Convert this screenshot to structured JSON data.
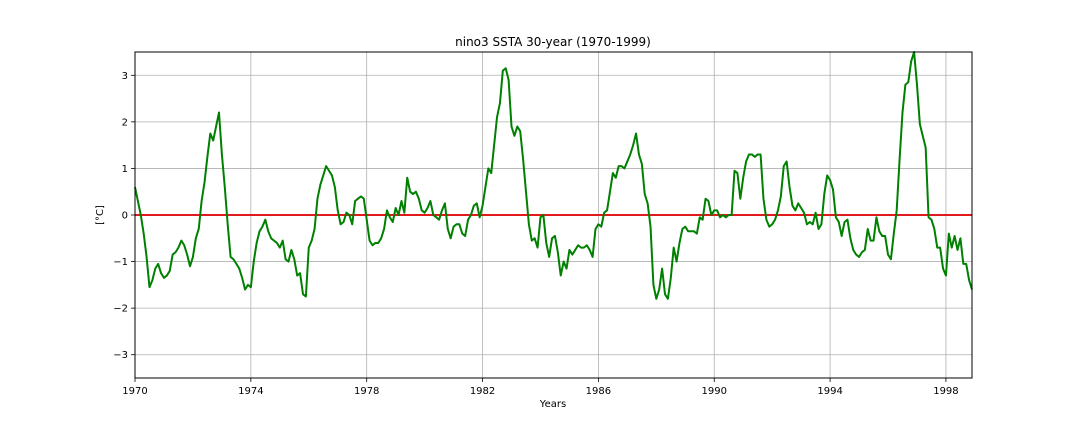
{
  "chart_data": {
    "type": "line",
    "title": "nino3 SSTA 30-year (1970-1999)",
    "xlabel": "Years",
    "ylabel": "[°C]",
    "xlim": [
      1970,
      1998.9
    ],
    "ylim": [
      -3.5,
      3.5
    ],
    "xticks": [
      1970,
      1974,
      1978,
      1982,
      1986,
      1990,
      1994,
      1998
    ],
    "yticks": [
      -3,
      -2,
      -1,
      0,
      1,
      2,
      3
    ],
    "grid": true,
    "reference_line": {
      "y": 0,
      "color": "#e31a1c"
    },
    "series": [
      {
        "color": "#008000",
        "points": [
          [
            1970.0,
            0.6
          ],
          [
            1970.1,
            0.3
          ],
          [
            1970.2,
            0.0
          ],
          [
            1970.3,
            -0.4
          ],
          [
            1970.4,
            -0.9
          ],
          [
            1970.5,
            -1.55
          ],
          [
            1970.6,
            -1.4
          ],
          [
            1970.7,
            -1.15
          ],
          [
            1970.8,
            -1.05
          ],
          [
            1970.9,
            -1.25
          ],
          [
            1971.0,
            -1.35
          ],
          [
            1971.1,
            -1.3
          ],
          [
            1971.2,
            -1.2
          ],
          [
            1971.3,
            -0.85
          ],
          [
            1971.4,
            -0.8
          ],
          [
            1971.5,
            -0.7
          ],
          [
            1971.6,
            -0.55
          ],
          [
            1971.7,
            -0.65
          ],
          [
            1971.8,
            -0.85
          ],
          [
            1971.9,
            -1.1
          ],
          [
            1972.0,
            -0.9
          ],
          [
            1972.1,
            -0.5
          ],
          [
            1972.2,
            -0.3
          ],
          [
            1972.3,
            0.3
          ],
          [
            1972.4,
            0.7
          ],
          [
            1972.5,
            1.25
          ],
          [
            1972.6,
            1.75
          ],
          [
            1972.7,
            1.6
          ],
          [
            1972.8,
            1.9
          ],
          [
            1972.9,
            2.2
          ],
          [
            1973.0,
            1.3
          ],
          [
            1973.1,
            0.6
          ],
          [
            1973.2,
            -0.2
          ],
          [
            1973.3,
            -0.9
          ],
          [
            1973.4,
            -0.95
          ],
          [
            1973.5,
            -1.05
          ],
          [
            1973.6,
            -1.15
          ],
          [
            1973.7,
            -1.35
          ],
          [
            1973.8,
            -1.6
          ],
          [
            1973.9,
            -1.5
          ],
          [
            1974.0,
            -1.55
          ],
          [
            1974.1,
            -1.0
          ],
          [
            1974.2,
            -0.6
          ],
          [
            1974.3,
            -0.35
          ],
          [
            1974.4,
            -0.25
          ],
          [
            1974.5,
            -0.1
          ],
          [
            1974.6,
            -0.35
          ],
          [
            1974.7,
            -0.5
          ],
          [
            1974.8,
            -0.55
          ],
          [
            1974.9,
            -0.6
          ],
          [
            1975.0,
            -0.7
          ],
          [
            1975.1,
            -0.55
          ],
          [
            1975.2,
            -0.95
          ],
          [
            1975.3,
            -1.0
          ],
          [
            1975.4,
            -0.75
          ],
          [
            1975.5,
            -0.95
          ],
          [
            1975.6,
            -1.3
          ],
          [
            1975.7,
            -1.25
          ],
          [
            1975.8,
            -1.7
          ],
          [
            1975.9,
            -1.75
          ],
          [
            1976.0,
            -0.7
          ],
          [
            1976.1,
            -0.55
          ],
          [
            1976.2,
            -0.3
          ],
          [
            1976.3,
            0.35
          ],
          [
            1976.4,
            0.65
          ],
          [
            1976.5,
            0.85
          ],
          [
            1976.6,
            1.05
          ],
          [
            1976.7,
            0.95
          ],
          [
            1976.8,
            0.85
          ],
          [
            1976.9,
            0.6
          ],
          [
            1977.0,
            0.1
          ],
          [
            1977.1,
            -0.2
          ],
          [
            1977.2,
            -0.15
          ],
          [
            1977.3,
            0.05
          ],
          [
            1977.4,
            0.0
          ],
          [
            1977.5,
            -0.2
          ],
          [
            1977.6,
            0.3
          ],
          [
            1977.7,
            0.35
          ],
          [
            1977.8,
            0.4
          ],
          [
            1977.9,
            0.35
          ],
          [
            1978.0,
            -0.1
          ],
          [
            1978.1,
            -0.55
          ],
          [
            1978.2,
            -0.65
          ],
          [
            1978.3,
            -0.6
          ],
          [
            1978.4,
            -0.6
          ],
          [
            1978.5,
            -0.5
          ],
          [
            1978.6,
            -0.3
          ],
          [
            1978.7,
            0.1
          ],
          [
            1978.8,
            -0.05
          ],
          [
            1978.9,
            -0.15
          ],
          [
            1979.0,
            0.15
          ],
          [
            1979.1,
            0.0
          ],
          [
            1979.2,
            0.3
          ],
          [
            1979.3,
            0.05
          ],
          [
            1979.4,
            0.8
          ],
          [
            1979.5,
            0.5
          ],
          [
            1979.6,
            0.45
          ],
          [
            1979.7,
            0.5
          ],
          [
            1979.8,
            0.35
          ],
          [
            1979.9,
            0.1
          ],
          [
            1980.0,
            0.05
          ],
          [
            1980.1,
            0.15
          ],
          [
            1980.2,
            0.3
          ],
          [
            1980.3,
            0.0
          ],
          [
            1980.4,
            -0.05
          ],
          [
            1980.5,
            -0.1
          ],
          [
            1980.6,
            0.1
          ],
          [
            1980.7,
            0.25
          ],
          [
            1980.8,
            -0.3
          ],
          [
            1980.9,
            -0.5
          ],
          [
            1981.0,
            -0.25
          ],
          [
            1981.1,
            -0.2
          ],
          [
            1981.2,
            -0.2
          ],
          [
            1981.3,
            -0.4
          ],
          [
            1981.4,
            -0.45
          ],
          [
            1981.5,
            -0.1
          ],
          [
            1981.6,
            0.0
          ],
          [
            1981.7,
            0.2
          ],
          [
            1981.8,
            0.25
          ],
          [
            1981.9,
            -0.05
          ],
          [
            1982.0,
            0.2
          ],
          [
            1982.1,
            0.6
          ],
          [
            1982.2,
            1.0
          ],
          [
            1982.3,
            0.9
          ],
          [
            1982.4,
            1.5
          ],
          [
            1982.5,
            2.1
          ],
          [
            1982.6,
            2.4
          ],
          [
            1982.7,
            3.1
          ],
          [
            1982.8,
            3.15
          ],
          [
            1982.9,
            2.9
          ],
          [
            1983.0,
            1.9
          ],
          [
            1983.1,
            1.7
          ],
          [
            1983.2,
            1.9
          ],
          [
            1983.3,
            1.8
          ],
          [
            1983.4,
            1.2
          ],
          [
            1983.5,
            0.5
          ],
          [
            1983.6,
            -0.2
          ],
          [
            1983.7,
            -0.55
          ],
          [
            1983.8,
            -0.5
          ],
          [
            1983.9,
            -0.7
          ],
          [
            1984.0,
            -0.05
          ],
          [
            1984.1,
            0.0
          ],
          [
            1984.2,
            -0.6
          ],
          [
            1984.3,
            -0.9
          ],
          [
            1984.4,
            -0.5
          ],
          [
            1984.5,
            -0.45
          ],
          [
            1984.6,
            -0.8
          ],
          [
            1984.7,
            -1.3
          ],
          [
            1984.8,
            -1.0
          ],
          [
            1984.9,
            -1.15
          ],
          [
            1985.0,
            -0.75
          ],
          [
            1985.1,
            -0.85
          ],
          [
            1985.2,
            -0.75
          ],
          [
            1985.3,
            -0.65
          ],
          [
            1985.4,
            -0.7
          ],
          [
            1985.5,
            -0.7
          ],
          [
            1985.6,
            -0.65
          ],
          [
            1985.7,
            -0.75
          ],
          [
            1985.8,
            -0.9
          ],
          [
            1985.9,
            -0.3
          ],
          [
            1986.0,
            -0.2
          ],
          [
            1986.1,
            -0.25
          ],
          [
            1986.2,
            0.05
          ],
          [
            1986.3,
            0.1
          ],
          [
            1986.4,
            0.5
          ],
          [
            1986.5,
            0.9
          ],
          [
            1986.6,
            0.8
          ],
          [
            1986.7,
            1.05
          ],
          [
            1986.8,
            1.05
          ],
          [
            1986.9,
            1.0
          ],
          [
            1987.0,
            1.15
          ],
          [
            1987.1,
            1.3
          ],
          [
            1987.2,
            1.5
          ],
          [
            1987.3,
            1.75
          ],
          [
            1987.4,
            1.3
          ],
          [
            1987.5,
            1.1
          ],
          [
            1987.6,
            0.45
          ],
          [
            1987.7,
            0.25
          ],
          [
            1987.8,
            -0.25
          ],
          [
            1987.9,
            -1.5
          ],
          [
            1988.0,
            -1.8
          ],
          [
            1988.1,
            -1.6
          ],
          [
            1988.2,
            -1.15
          ],
          [
            1988.3,
            -1.7
          ],
          [
            1988.4,
            -1.8
          ],
          [
            1988.5,
            -1.35
          ],
          [
            1988.6,
            -0.7
          ],
          [
            1988.7,
            -1.0
          ],
          [
            1988.8,
            -0.6
          ],
          [
            1988.9,
            -0.3
          ],
          [
            1989.0,
            -0.25
          ],
          [
            1989.1,
            -0.35
          ],
          [
            1989.2,
            -0.35
          ],
          [
            1989.3,
            -0.35
          ],
          [
            1989.4,
            -0.4
          ],
          [
            1989.5,
            -0.05
          ],
          [
            1989.6,
            -0.1
          ],
          [
            1989.7,
            0.35
          ],
          [
            1989.8,
            0.3
          ],
          [
            1989.9,
            0.0
          ],
          [
            1990.0,
            0.1
          ],
          [
            1990.1,
            0.1
          ],
          [
            1990.2,
            -0.05
          ],
          [
            1990.3,
            0.0
          ],
          [
            1990.4,
            -0.05
          ],
          [
            1990.5,
            0.0
          ],
          [
            1990.6,
            0.0
          ],
          [
            1990.7,
            0.95
          ],
          [
            1990.8,
            0.9
          ],
          [
            1990.9,
            0.35
          ],
          [
            1991.0,
            0.8
          ],
          [
            1991.1,
            1.15
          ],
          [
            1991.2,
            1.3
          ],
          [
            1991.3,
            1.3
          ],
          [
            1991.4,
            1.25
          ],
          [
            1991.5,
            1.3
          ],
          [
            1991.6,
            1.3
          ],
          [
            1991.7,
            0.35
          ],
          [
            1991.8,
            -0.1
          ],
          [
            1991.9,
            -0.25
          ],
          [
            1992.0,
            -0.2
          ],
          [
            1992.1,
            -0.1
          ],
          [
            1992.2,
            0.1
          ],
          [
            1992.3,
            0.4
          ],
          [
            1992.4,
            1.05
          ],
          [
            1992.5,
            1.15
          ],
          [
            1992.6,
            0.6
          ],
          [
            1992.7,
            0.2
          ],
          [
            1992.8,
            0.1
          ],
          [
            1992.9,
            0.25
          ],
          [
            1993.0,
            0.15
          ],
          [
            1993.1,
            0.05
          ],
          [
            1993.2,
            -0.2
          ],
          [
            1993.3,
            -0.15
          ],
          [
            1993.4,
            -0.2
          ],
          [
            1993.5,
            0.05
          ],
          [
            1993.6,
            -0.3
          ],
          [
            1993.7,
            -0.2
          ],
          [
            1993.8,
            0.45
          ],
          [
            1993.9,
            0.85
          ],
          [
            1994.0,
            0.75
          ],
          [
            1994.1,
            0.55
          ],
          [
            1994.2,
            -0.05
          ],
          [
            1994.3,
            -0.15
          ],
          [
            1994.4,
            -0.45
          ],
          [
            1994.5,
            -0.15
          ],
          [
            1994.6,
            -0.1
          ],
          [
            1994.7,
            -0.5
          ],
          [
            1994.8,
            -0.75
          ],
          [
            1994.9,
            -0.85
          ],
          [
            1995.0,
            -0.9
          ],
          [
            1995.1,
            -0.8
          ],
          [
            1995.2,
            -0.75
          ],
          [
            1995.3,
            -0.3
          ],
          [
            1995.4,
            -0.55
          ],
          [
            1995.5,
            -0.55
          ],
          [
            1995.6,
            -0.05
          ],
          [
            1995.7,
            -0.35
          ],
          [
            1995.8,
            -0.45
          ],
          [
            1995.9,
            -0.45
          ],
          [
            1996.0,
            -0.85
          ],
          [
            1996.1,
            -0.95
          ],
          [
            1996.2,
            -0.4
          ],
          [
            1996.3,
            0.1
          ],
          [
            1996.4,
            1.2
          ],
          [
            1996.5,
            2.2
          ],
          [
            1996.6,
            2.8
          ],
          [
            1996.7,
            2.85
          ],
          [
            1996.8,
            3.3
          ],
          [
            1996.9,
            3.5
          ],
          [
            1997.0,
            2.8
          ],
          [
            1997.1,
            1.95
          ],
          [
            1997.2,
            1.7
          ],
          [
            1997.3,
            1.45
          ],
          [
            1997.4,
            -0.05
          ],
          [
            1997.5,
            -0.1
          ],
          [
            1997.6,
            -0.3
          ],
          [
            1997.7,
            -0.7
          ],
          [
            1997.8,
            -0.7
          ],
          [
            1997.9,
            -1.15
          ],
          [
            1998.0,
            -1.3
          ],
          [
            1998.1,
            -0.4
          ],
          [
            1998.2,
            -0.7
          ],
          [
            1998.3,
            -0.45
          ],
          [
            1998.4,
            -0.75
          ],
          [
            1998.5,
            -0.5
          ],
          [
            1998.6,
            -1.05
          ],
          [
            1998.7,
            -1.05
          ],
          [
            1998.8,
            -1.4
          ],
          [
            1998.9,
            -1.6
          ]
        ]
      }
    ]
  }
}
